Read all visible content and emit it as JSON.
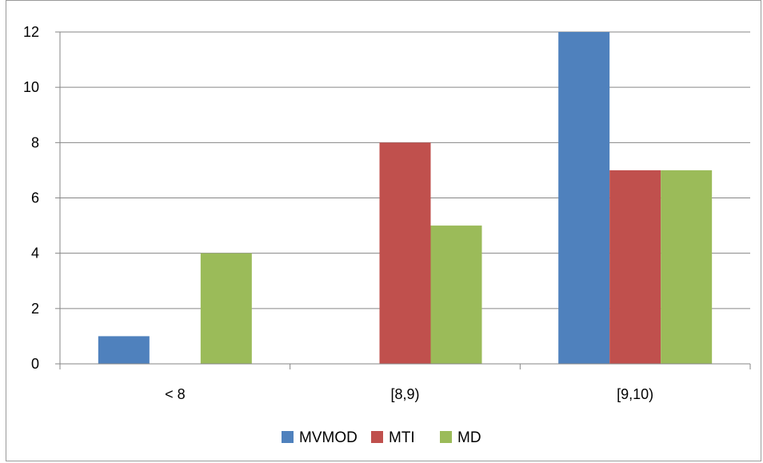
{
  "chart_data": {
    "type": "bar",
    "title": "",
    "xlabel": "",
    "ylabel": "",
    "categories": [
      "< 8",
      "[8,9)",
      "[9,10)"
    ],
    "series": [
      {
        "name": "MVMOD",
        "color": "#4F81BD",
        "values": [
          1,
          0,
          12
        ]
      },
      {
        "name": "MTI",
        "color": "#C0504D",
        "values": [
          0,
          8,
          7
        ]
      },
      {
        "name": "MD",
        "color": "#9BBB59",
        "values": [
          4,
          5,
          7
        ]
      }
    ],
    "ylim": [
      0,
      12
    ],
    "yticks": [
      0,
      2,
      4,
      6,
      8,
      10,
      12
    ],
    "grid": true,
    "legend_position": "bottom"
  }
}
